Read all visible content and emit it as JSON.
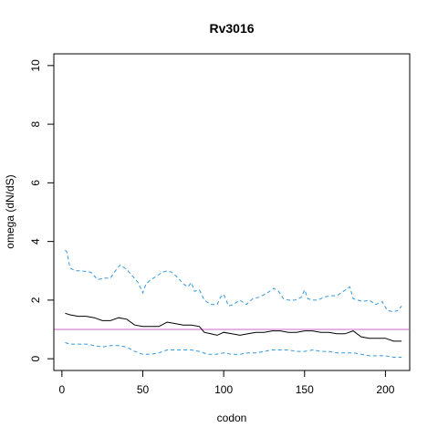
{
  "chart_data": {
    "type": "line",
    "title": "Rv3016",
    "xlabel": "codon",
    "ylabel": "omega (dN/dS)",
    "xlim": [
      -5,
      215
    ],
    "ylim": [
      -0.4,
      10.4
    ],
    "x_ticks": [
      0,
      50,
      100,
      150,
      200
    ],
    "y_ticks": [
      0,
      2,
      4,
      6,
      8,
      10
    ],
    "reference_line": {
      "y": 1,
      "color": "#cc66cc"
    },
    "series": [
      {
        "role": "upper",
        "color": "#3399dd",
        "dash": true,
        "x": [
          2,
          3,
          5,
          8,
          12,
          18,
          22,
          26,
          30,
          33,
          36,
          40,
          44,
          47,
          50,
          52,
          55,
          58,
          62,
          65,
          68,
          72,
          75,
          78,
          80,
          82,
          85,
          88,
          92,
          96,
          98,
          100,
          103,
          106,
          110,
          114,
          118,
          122,
          127,
          131,
          134,
          137,
          140,
          144,
          148,
          150,
          152,
          155,
          158,
          162,
          166,
          170,
          174,
          178,
          180,
          183,
          186,
          190,
          194,
          198,
          201,
          205,
          208,
          210
        ],
        "y": [
          3.7,
          3.65,
          3.1,
          3.0,
          3.0,
          2.95,
          2.7,
          2.75,
          2.75,
          3.0,
          3.2,
          3.05,
          2.8,
          2.6,
          2.25,
          2.55,
          2.7,
          2.8,
          2.95,
          3.0,
          2.95,
          2.75,
          2.55,
          2.45,
          2.6,
          2.3,
          2.35,
          2.0,
          1.85,
          1.85,
          2.1,
          2.2,
          1.8,
          1.85,
          2.0,
          1.85,
          2.05,
          2.1,
          2.25,
          2.4,
          2.3,
          2.05,
          2.0,
          2.0,
          2.1,
          2.35,
          2.05,
          2.0,
          2.0,
          2.1,
          2.15,
          2.15,
          2.3,
          2.45,
          2.05,
          2.0,
          1.95,
          2.0,
          1.85,
          1.95,
          1.65,
          1.6,
          1.65,
          1.8
        ]
      },
      {
        "role": "estimate",
        "color": "#000000",
        "dash": false,
        "x": [
          2,
          5,
          10,
          15,
          20,
          25,
          30,
          35,
          40,
          45,
          50,
          55,
          60,
          65,
          70,
          75,
          80,
          85,
          88,
          92,
          96,
          100,
          105,
          110,
          115,
          120,
          125,
          130,
          135,
          140,
          145,
          150,
          152,
          155,
          160,
          165,
          170,
          175,
          180,
          185,
          190,
          195,
          200,
          205,
          210
        ],
        "y": [
          1.55,
          1.5,
          1.45,
          1.45,
          1.4,
          1.3,
          1.3,
          1.4,
          1.35,
          1.15,
          1.1,
          1.1,
          1.1,
          1.25,
          1.2,
          1.15,
          1.15,
          1.1,
          0.9,
          0.85,
          0.8,
          0.9,
          0.85,
          0.8,
          0.85,
          0.9,
          0.9,
          0.95,
          0.95,
          0.9,
          0.9,
          0.95,
          0.95,
          0.95,
          0.9,
          0.9,
          0.85,
          0.85,
          0.95,
          0.75,
          0.7,
          0.7,
          0.7,
          0.6,
          0.6
        ]
      },
      {
        "role": "lower",
        "color": "#3399dd",
        "dash": true,
        "x": [
          2,
          5,
          10,
          15,
          20,
          25,
          30,
          35,
          40,
          45,
          50,
          55,
          60,
          65,
          70,
          75,
          80,
          85,
          90,
          95,
          100,
          105,
          110,
          115,
          120,
          125,
          130,
          135,
          140,
          145,
          150,
          155,
          160,
          165,
          170,
          175,
          180,
          185,
          190,
          195,
          200,
          205,
          210
        ],
        "y": [
          0.55,
          0.5,
          0.5,
          0.5,
          0.45,
          0.4,
          0.45,
          0.45,
          0.4,
          0.25,
          0.15,
          0.15,
          0.2,
          0.3,
          0.3,
          0.3,
          0.3,
          0.25,
          0.15,
          0.15,
          0.2,
          0.15,
          0.15,
          0.2,
          0.2,
          0.25,
          0.3,
          0.3,
          0.3,
          0.25,
          0.25,
          0.3,
          0.25,
          0.25,
          0.2,
          0.2,
          0.2,
          0.15,
          0.1,
          0.1,
          0.1,
          0.05,
          0.05
        ]
      }
    ]
  }
}
